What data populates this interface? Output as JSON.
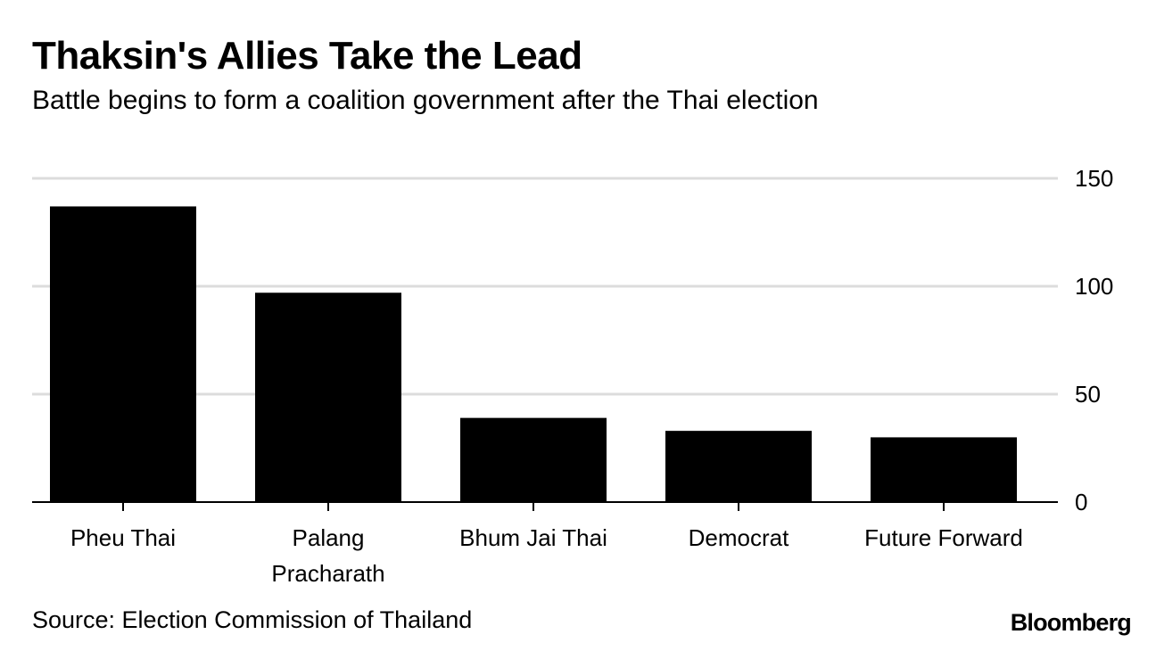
{
  "chart_data": {
    "type": "bar",
    "title": "Thaksin's Allies Take the Lead",
    "subtitle": "Battle begins to form a coalition government after the Thai election",
    "categories": [
      [
        "Pheu Thai"
      ],
      [
        "Palang",
        "Pracharath"
      ],
      [
        "Bhum Jai Thai"
      ],
      [
        "Democrat"
      ],
      [
        "Future Forward"
      ]
    ],
    "values": [
      137,
      97,
      39,
      33,
      30
    ],
    "yticks": [
      "0",
      "50",
      "100",
      "150"
    ],
    "ylim": [
      0,
      150
    ],
    "xlabel": "",
    "ylabel": "",
    "grid": true,
    "y_axis_side": "right",
    "bar_color": "#000000",
    "grid_color": "#dcdcdc"
  },
  "footer": {
    "source": "Source: Election Commission of Thailand",
    "brand": "Bloomberg"
  }
}
